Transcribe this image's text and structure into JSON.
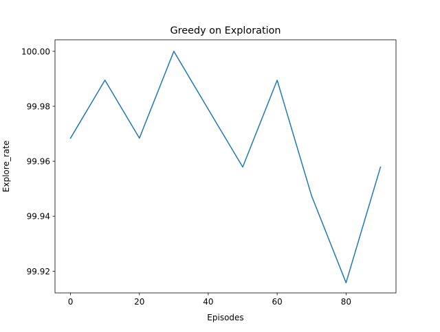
{
  "chart_data": {
    "type": "line",
    "title": "Greedy  on Exploration",
    "xlabel": "Episodes",
    "ylabel": "Explore_rate",
    "xlim": [
      -4.5,
      94.5
    ],
    "ylim": [
      99.9121,
      100.0042
    ],
    "xticks": [
      0,
      20,
      40,
      60,
      80
    ],
    "xtick_labels": [
      "0",
      "20",
      "40",
      "60",
      "80"
    ],
    "yticks": [
      99.92,
      99.94,
      99.96,
      99.98,
      100.0
    ],
    "ytick_labels": [
      "99.92",
      "99.94",
      "99.96",
      "99.98",
      "100.00"
    ],
    "grid": false,
    "series": [
      {
        "color": "#1f77b4",
        "x": [
          0,
          10,
          20,
          30,
          40,
          50,
          60,
          70,
          80,
          90
        ],
        "y": [
          99.9684,
          99.9895,
          99.9684,
          100.0,
          99.9789,
          99.9579,
          99.9895,
          99.9474,
          99.9158,
          99.9579
        ]
      }
    ]
  }
}
